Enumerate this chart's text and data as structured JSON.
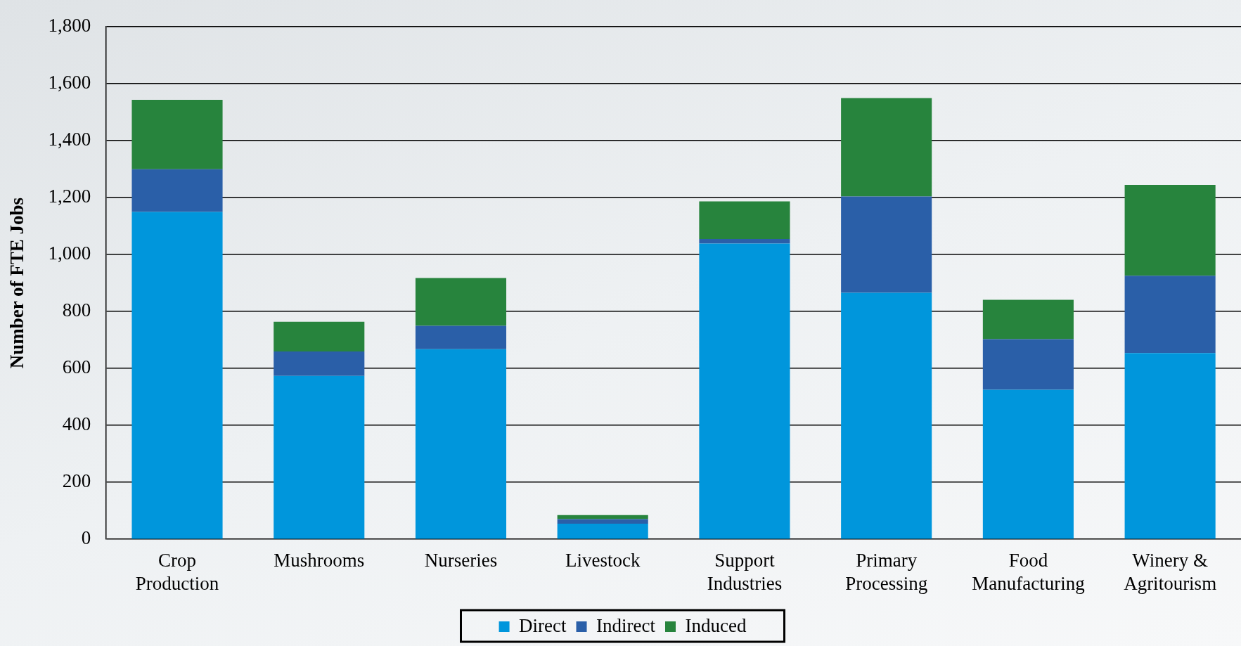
{
  "chart_data": {
    "type": "bar",
    "ylabel": "Number of FTE Jobs",
    "stacked": true,
    "categories": [
      "Crop Production",
      "Mushrooms",
      "Nurseries",
      "Livestock",
      "Support Industries",
      "Primary Processing",
      "Food Manufacturing",
      "Winery & Agritourism"
    ],
    "series": [
      {
        "name": "Direct",
        "color": "#0096dc",
        "values": [
          1150,
          574,
          668,
          55,
          1039,
          866,
          525,
          654
        ]
      },
      {
        "name": "Indirect",
        "color": "#2a5fa8",
        "values": [
          150,
          86,
          82,
          16,
          16,
          338,
          178,
          272
        ]
      },
      {
        "name": "Induced",
        "color": "#27843d",
        "values": [
          244,
          104,
          168,
          14,
          132,
          346,
          138,
          319
        ]
      }
    ],
    "ylim": [
      0,
      1800
    ],
    "yticks": [
      0,
      200,
      400,
      600,
      800,
      {
        "value": 1000,
        "label": "1,000"
      },
      {
        "value": 1200,
        "label": "1,200"
      },
      {
        "value": 1400,
        "label": "1,400"
      },
      {
        "value": 1600,
        "label": "1,600"
      },
      {
        "value": 1800,
        "label": "1,800"
      }
    ],
    "grid": "y",
    "legend": "bottom"
  }
}
